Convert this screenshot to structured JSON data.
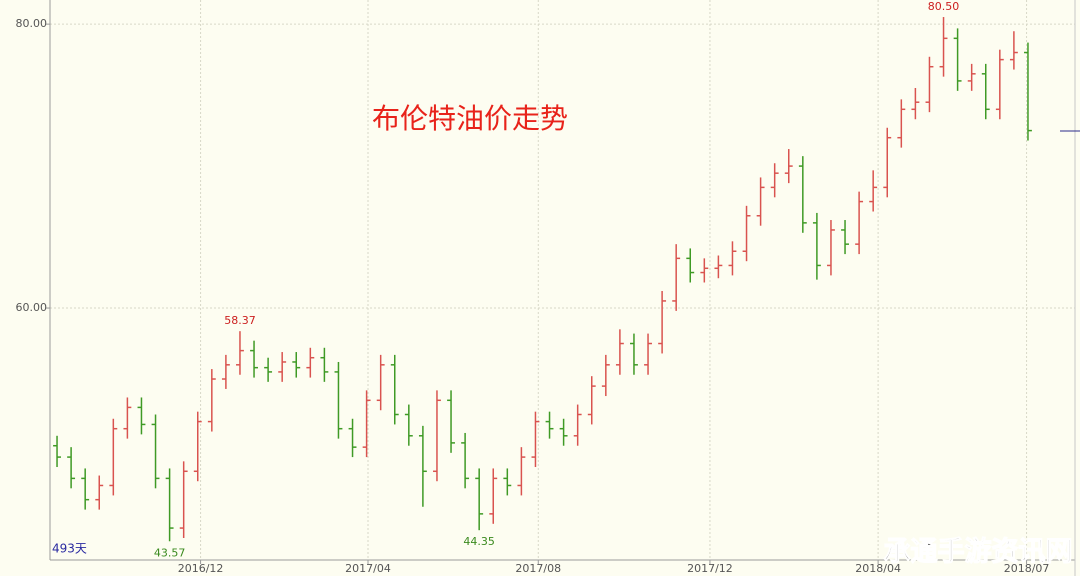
{
  "chart_data": {
    "type": "ohlc",
    "title": "布伦特油价走势",
    "period_label": "493天",
    "watermark": "承通手游资讯网",
    "up_color": "#d9534f",
    "down_color": "#3f9a25",
    "title_color": "#e8231a",
    "label_color": "#cc2020",
    "low_label_color": "#3a8a1e",
    "open": [
      50.3,
      49.5,
      48.0,
      46.5,
      47.5,
      51.5,
      53.0,
      51.8,
      48.0,
      44.5,
      48.5,
      52.0,
      55.0,
      56.0,
      57.0,
      55.8,
      55.5,
      56.2,
      55.8,
      56.5,
      55.5,
      51.5,
      50.2,
      53.5,
      56.0,
      52.5,
      51.0,
      48.5,
      53.5,
      50.5,
      48.0,
      45.5,
      48.0,
      47.5,
      49.5,
      52.0,
      51.5,
      51.0,
      52.5,
      54.5,
      56.0,
      57.5,
      56.0,
      57.5,
      60.5,
      63.5,
      62.5,
      62.8,
      63.0,
      64.0,
      66.5,
      68.5,
      69.5,
      70.0,
      66.0,
      63.0,
      65.5,
      64.5,
      67.5,
      68.5,
      72.0,
      74.0,
      74.5,
      77.0,
      79.0,
      76.0,
      76.5,
      74.0,
      77.5,
      78.0
    ],
    "high": [
      51.0,
      50.2,
      48.7,
      48.2,
      52.2,
      53.7,
      53.7,
      52.5,
      48.7,
      49.2,
      52.7,
      55.7,
      56.7,
      58.37,
      57.7,
      56.5,
      56.9,
      56.9,
      57.2,
      57.2,
      56.2,
      52.2,
      54.2,
      56.7,
      56.7,
      53.2,
      51.7,
      54.2,
      54.2,
      51.2,
      48.7,
      48.7,
      48.7,
      50.2,
      52.7,
      52.7,
      52.2,
      53.2,
      55.2,
      56.7,
      58.5,
      58.2,
      58.2,
      61.2,
      64.5,
      64.2,
      63.5,
      63.7,
      64.7,
      67.2,
      69.2,
      70.2,
      71.2,
      70.7,
      66.7,
      66.2,
      66.2,
      68.2,
      69.7,
      72.7,
      74.7,
      75.5,
      77.7,
      80.5,
      79.7,
      77.2,
      77.2,
      78.2,
      79.5,
      78.7
    ],
    "low": [
      48.8,
      47.3,
      45.8,
      45.8,
      46.8,
      50.8,
      51.1,
      47.3,
      43.57,
      43.8,
      47.8,
      51.3,
      54.3,
      55.3,
      55.1,
      54.8,
      54.8,
      55.1,
      55.1,
      54.8,
      50.8,
      49.5,
      49.5,
      52.8,
      51.8,
      50.3,
      46.0,
      47.8,
      49.8,
      47.3,
      44.35,
      44.8,
      46.8,
      46.8,
      48.8,
      50.8,
      50.3,
      50.3,
      51.8,
      53.8,
      55.3,
      55.3,
      55.3,
      56.8,
      59.8,
      61.8,
      61.8,
      62.1,
      62.3,
      63.3,
      65.8,
      67.8,
      68.8,
      65.3,
      62.0,
      62.3,
      63.8,
      63.8,
      66.8,
      67.8,
      71.3,
      73.3,
      73.8,
      76.3,
      75.3,
      75.3,
      73.3,
      73.3,
      76.8,
      71.8
    ],
    "close": [
      49.5,
      48.0,
      46.5,
      47.5,
      51.5,
      53.0,
      51.8,
      48.0,
      44.5,
      48.5,
      52.0,
      55.0,
      56.0,
      57.0,
      55.8,
      55.5,
      56.2,
      55.8,
      56.5,
      55.5,
      51.5,
      50.2,
      53.5,
      56.0,
      52.5,
      51.0,
      48.5,
      53.5,
      50.5,
      48.0,
      45.5,
      48.0,
      47.5,
      49.5,
      52.0,
      51.5,
      51.0,
      52.5,
      54.5,
      56.0,
      57.5,
      56.0,
      57.5,
      60.5,
      63.5,
      62.5,
      62.8,
      63.0,
      64.0,
      66.5,
      68.5,
      69.5,
      70.0,
      66.0,
      63.0,
      65.5,
      64.5,
      67.5,
      68.5,
      72.0,
      74.0,
      74.5,
      77.0,
      79.0,
      76.0,
      76.5,
      74.0,
      77.5,
      78.0,
      72.5
    ],
    "high_labels": [
      null,
      null,
      null,
      null,
      null,
      null,
      null,
      null,
      null,
      null,
      null,
      null,
      null,
      "58.37",
      null,
      null,
      null,
      null,
      null,
      null,
      null,
      null,
      null,
      null,
      null,
      null,
      null,
      null,
      null,
      null,
      null,
      null,
      null,
      null,
      null,
      null,
      null,
      null,
      null,
      null,
      null,
      null,
      null,
      null,
      null,
      null,
      null,
      null,
      null,
      null,
      null,
      null,
      null,
      null,
      null,
      null,
      null,
      null,
      null,
      null,
      null,
      null,
      null,
      "80.50",
      null,
      null,
      null,
      null,
      null,
      null
    ],
    "low_labels": [
      null,
      null,
      null,
      null,
      null,
      null,
      null,
      null,
      "43.57",
      null,
      null,
      null,
      null,
      null,
      null,
      null,
      null,
      null,
      null,
      null,
      null,
      null,
      null,
      null,
      null,
      null,
      null,
      null,
      null,
      null,
      "44.35",
      null,
      null,
      null,
      null,
      null,
      null,
      null,
      null,
      null,
      null,
      null,
      null,
      null,
      null,
      null,
      null,
      null,
      null,
      null,
      null,
      null,
      null,
      null,
      null,
      null,
      null,
      null,
      null,
      null,
      null,
      null,
      null,
      null,
      null,
      null,
      null,
      null,
      null,
      null
    ],
    "xlim": [
      -0.5,
      69.5
    ],
    "xticks": [
      {
        "value": 10.2,
        "label": "2016/12"
      },
      {
        "value": 22.1,
        "label": "2017/04"
      },
      {
        "value": 34.2,
        "label": "2017/08"
      },
      {
        "value": 46.4,
        "label": "2017/12"
      },
      {
        "value": 58.35,
        "label": "2018/04"
      },
      {
        "value": 68.9,
        "label": "2018/07"
      }
    ],
    "ylim": [
      42.25,
      81.7
    ],
    "yticks": [
      {
        "value": 60,
        "label": "60.00"
      },
      {
        "value": 80,
        "label": "80.00"
      }
    ],
    "grid": true
  }
}
